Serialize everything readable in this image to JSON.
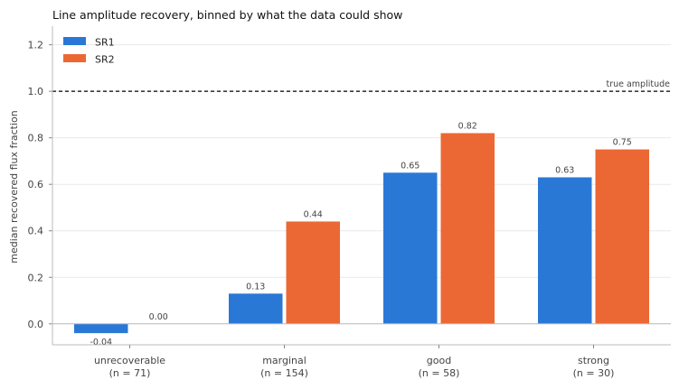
{
  "chart_data": {
    "type": "bar",
    "title": "Line amplitude recovery, binned by what the data could show",
    "ylabel": "median recovered flux fraction",
    "xlabel": "",
    "ylim": [
      -0.09,
      1.28
    ],
    "yticks": [
      "0.0",
      "0.2",
      "0.4",
      "0.6",
      "0.8",
      "1.0",
      "1.2"
    ],
    "grid": true,
    "legend_position": "top-left",
    "categories": [
      {
        "label": "unrecoverable",
        "count": "(n = 71)"
      },
      {
        "label": "marginal",
        "count": "(n = 154)"
      },
      {
        "label": "good",
        "count": "(n = 58)"
      },
      {
        "label": "strong",
        "count": "(n = 30)"
      }
    ],
    "series": [
      {
        "name": "SR1",
        "color": "#2a78d6",
        "values": [
          -0.04,
          0.13,
          0.65,
          0.63
        ],
        "labels": [
          "-0.04",
          "0.13",
          "0.65",
          "0.63"
        ]
      },
      {
        "name": "SR2",
        "color": "#eb6834",
        "values": [
          0.0,
          0.44,
          0.82,
          0.75
        ],
        "labels": [
          "0.00",
          "0.44",
          "0.82",
          "0.75"
        ]
      }
    ],
    "reference_line": {
      "value": 1.0,
      "label": "true amplitude",
      "style": "dashed",
      "color": "#000000"
    }
  }
}
